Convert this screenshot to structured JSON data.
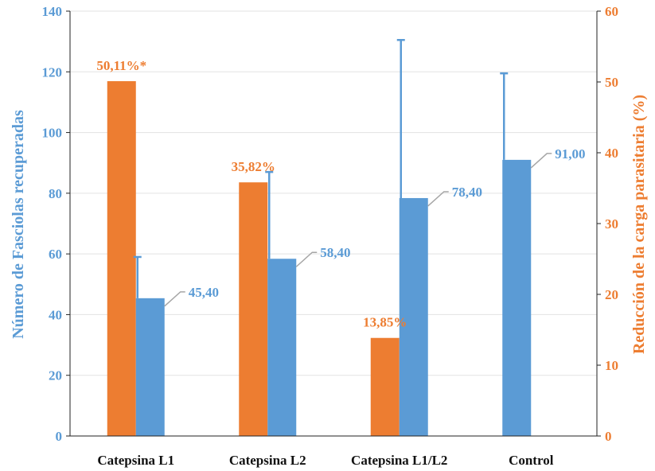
{
  "colors": {
    "fasciolas": "#5B9BD5",
    "reduccion": "#ED7D31",
    "grid": "#E3E3E3",
    "axis_dark": "#222222",
    "label_dark": "#111111"
  },
  "chart_data": {
    "type": "bar",
    "categories": [
      "Catepsina L1",
      "Catepsina L2",
      "Catepsina L1/L2",
      "Control"
    ],
    "y_left": {
      "label": "Número de Fasciolas recuperadas",
      "range": [
        0,
        140
      ],
      "ticks": [
        "0",
        "20",
        "40",
        "60",
        "80",
        "100",
        "120",
        "140"
      ]
    },
    "y_right": {
      "label": "Reducción de la carga parasitaria (%)",
      "range": [
        0,
        60
      ],
      "ticks": [
        "0",
        "10",
        "20",
        "30",
        "40",
        "50",
        "60"
      ]
    },
    "grid": true,
    "series": [
      {
        "key": "reduccion",
        "axis": "right",
        "values": [
          50.11,
          35.82,
          13.85,
          null
        ],
        "data_labels": [
          "50,11%*",
          "35,82%",
          "13,85%",
          ""
        ]
      },
      {
        "key": "fasciolas",
        "axis": "left",
        "values": [
          45.4,
          58.4,
          78.4,
          91.0
        ],
        "error_upper": [
          59,
          87,
          130.5,
          119.5
        ],
        "data_labels": [
          "45,40",
          "58,40",
          "78,40",
          "91,00"
        ]
      }
    ]
  }
}
